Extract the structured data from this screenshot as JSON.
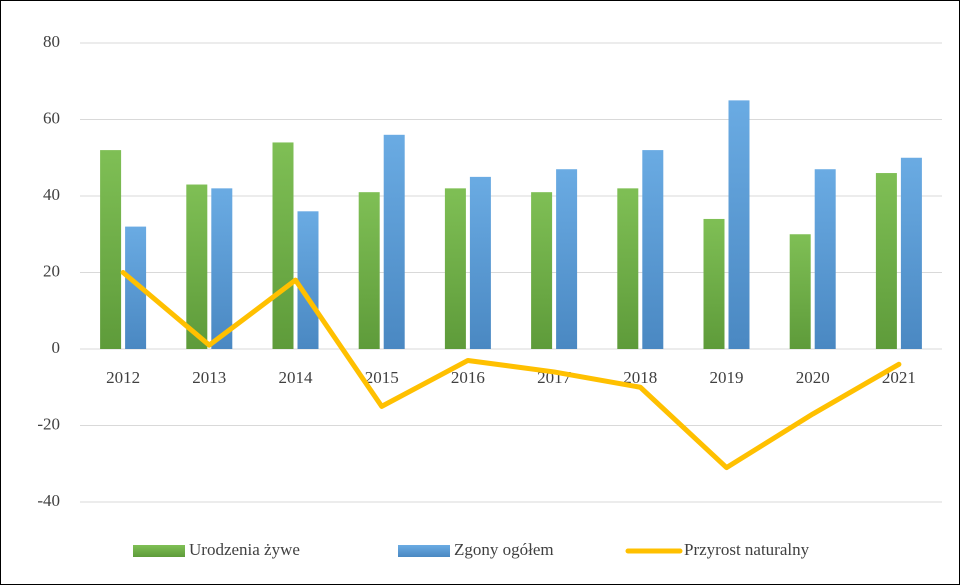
{
  "chart_data": {
    "type": "bar",
    "categories": [
      "2012",
      "2013",
      "2014",
      "2015",
      "2016",
      "2017",
      "2018",
      "2019",
      "2020",
      "2021"
    ],
    "series": [
      {
        "name": "Urodzenia żywe",
        "type": "bar",
        "color": "#70ad47",
        "values": [
          52,
          43,
          54,
          41,
          42,
          41,
          42,
          34,
          30,
          46
        ]
      },
      {
        "name": "Zgony ogółem",
        "type": "bar",
        "color": "#5b9bd5",
        "values": [
          32,
          42,
          36,
          56,
          45,
          47,
          52,
          65,
          47,
          50
        ]
      },
      {
        "name": "Przyrost naturalny",
        "type": "line",
        "color": "#ffc000",
        "values": [
          20,
          1,
          18,
          -15,
          -3,
          -6,
          -10,
          -31,
          -17,
          -4
        ]
      }
    ],
    "ylim": [
      -40,
      80
    ],
    "yticks": [
      -40,
      -20,
      0,
      20,
      40,
      60,
      80
    ],
    "grid": true,
    "legend": "bottom"
  }
}
